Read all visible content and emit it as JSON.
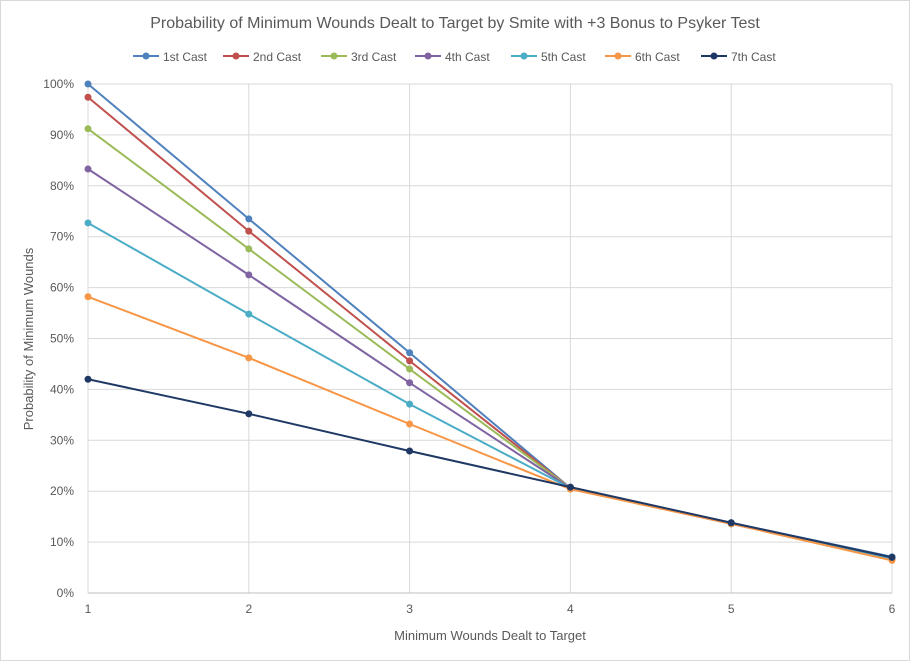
{
  "chart_data": {
    "type": "line",
    "title": "Probability of Minimum Wounds Dealt to Target by Smite with +3 Bonus to Psyker Test",
    "xlabel": "Minimum Wounds Dealt to Target",
    "ylabel": "Probability of Minimum Wounds",
    "x": [
      1,
      2,
      3,
      4,
      5,
      6
    ],
    "x_ticks": [
      "1",
      "2",
      "3",
      "4",
      "5",
      "6"
    ],
    "xlim": [
      1,
      6
    ],
    "ylim": [
      0,
      100
    ],
    "y_ticks": [
      "0%",
      "10%",
      "20%",
      "30%",
      "40%",
      "50%",
      "60%",
      "70%",
      "80%",
      "90%",
      "100%"
    ],
    "grid": true,
    "legend_position": "top",
    "series": [
      {
        "name": "1st Cast",
        "color": "#4f81bd",
        "values": [
          100,
          73.5,
          47.2,
          20.6,
          13.8,
          7.1
        ]
      },
      {
        "name": "2nd Cast",
        "color": "#c0504d",
        "values": [
          97.4,
          71.1,
          45.6,
          20.6,
          13.6,
          6.8
        ]
      },
      {
        "name": "3rd Cast",
        "color": "#9bbb59",
        "values": [
          91.2,
          67.6,
          44.0,
          20.6,
          13.6,
          6.8
        ]
      },
      {
        "name": "4th Cast",
        "color": "#8064a2",
        "values": [
          83.3,
          62.5,
          41.3,
          20.6,
          13.6,
          6.8
        ]
      },
      {
        "name": "5th Cast",
        "color": "#4bacc6",
        "values": [
          72.7,
          54.8,
          37.1,
          20.6,
          13.6,
          6.8
        ]
      },
      {
        "name": "6th Cast",
        "color": "#f79646",
        "values": [
          58.2,
          46.2,
          33.2,
          20.4,
          13.6,
          6.4
        ]
      },
      {
        "name": "7th Cast",
        "color": "#1f3864",
        "values": [
          42.0,
          35.2,
          27.9,
          20.8,
          13.8,
          7.0
        ]
      }
    ]
  }
}
